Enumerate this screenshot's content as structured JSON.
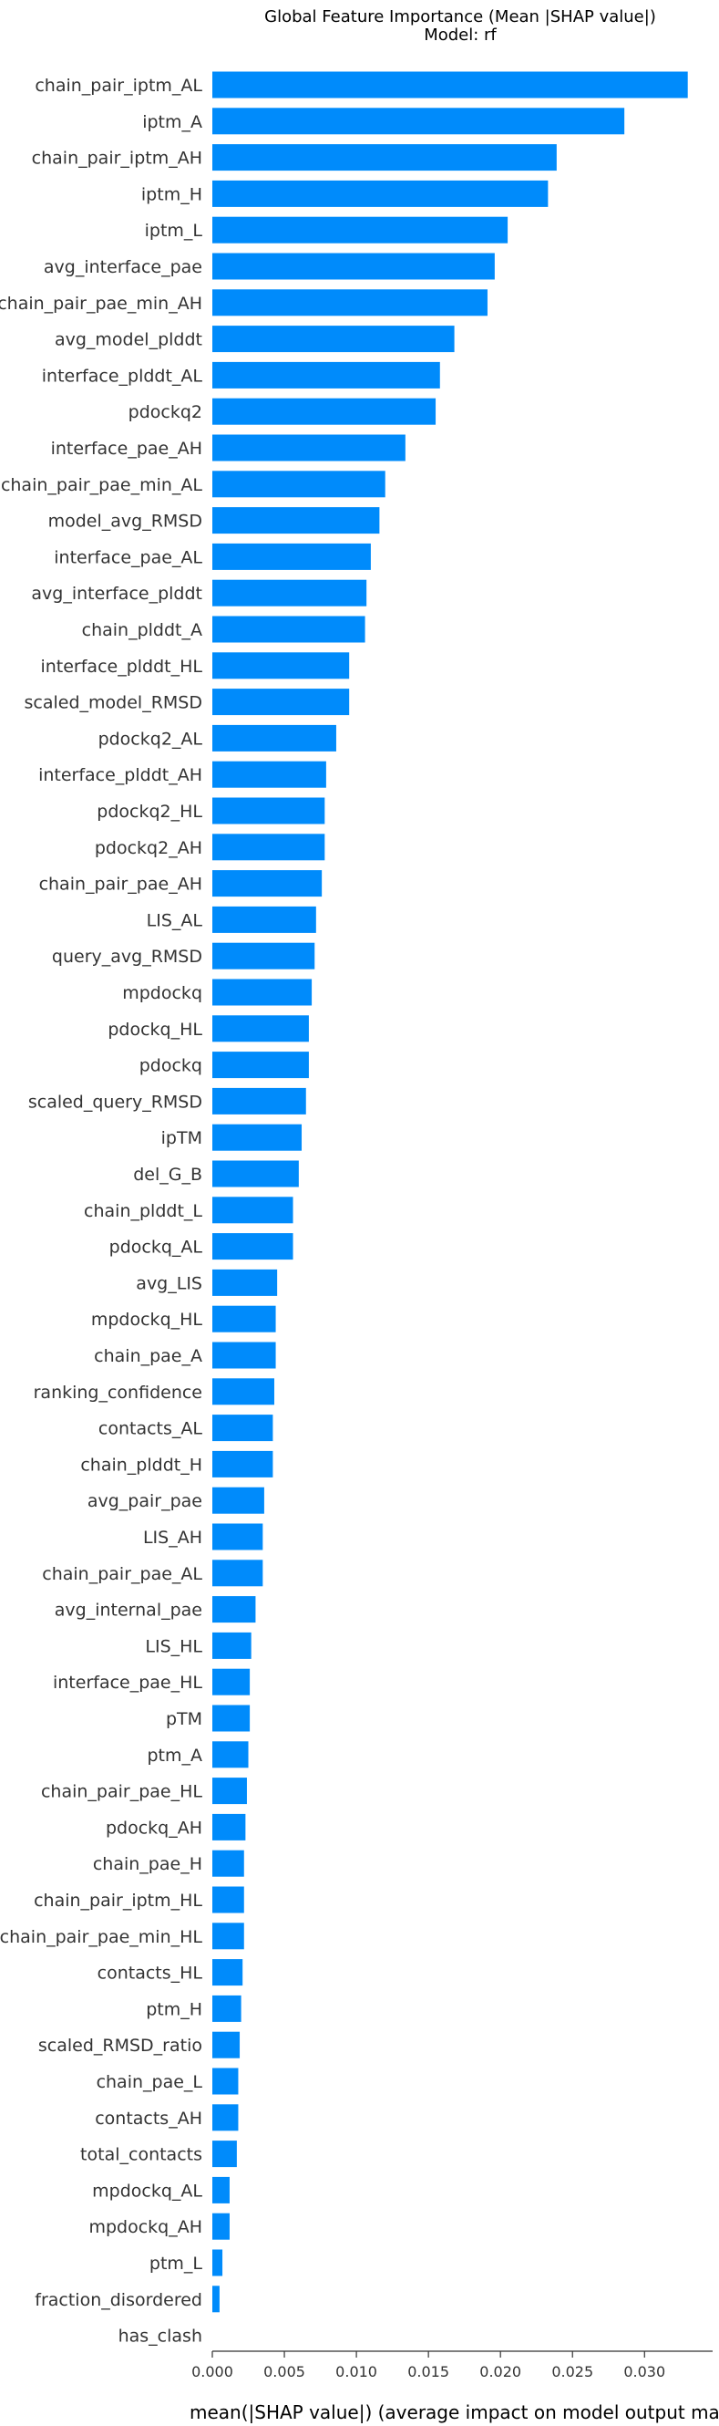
{
  "chart_data": {
    "type": "bar",
    "orientation": "horizontal",
    "title": "Global Feature Importance (Mean |SHAP value|)",
    "subtitle": "Model: rf",
    "xlabel": "mean(|SHAP value|) (average impact on model output magnitud",
    "xlim": [
      0,
      0.0346
    ],
    "xticks": [
      "0.000",
      "0.005",
      "0.010",
      "0.015",
      "0.020",
      "0.025",
      "0.030"
    ],
    "bar_color": "#008bfb",
    "grid": false,
    "categories": [
      "chain_pair_iptm_AL",
      "iptm_A",
      "chain_pair_iptm_AH",
      "iptm_H",
      "iptm_L",
      "avg_interface_pae",
      "chain_pair_pae_min_AH",
      "avg_model_plddt",
      "interface_plddt_AL",
      "pdockq2",
      "interface_pae_AH",
      "chain_pair_pae_min_AL",
      "model_avg_RMSD",
      "interface_pae_AL",
      "avg_interface_plddt",
      "chain_plddt_A",
      "interface_plddt_HL",
      "scaled_model_RMSD",
      "pdockq2_AL",
      "interface_plddt_AH",
      "pdockq2_HL",
      "pdockq2_AH",
      "chain_pair_pae_AH",
      "LIS_AL",
      "query_avg_RMSD",
      "mpdockq",
      "pdockq_HL",
      "pdockq",
      "scaled_query_RMSD",
      "ipTM",
      "del_G_B",
      "chain_plddt_L",
      "pdockq_AL",
      "avg_LIS",
      "mpdockq_HL",
      "chain_pae_A",
      "ranking_confidence",
      "contacts_AL",
      "chain_plddt_H",
      "avg_pair_pae",
      "LIS_AH",
      "chain_pair_pae_AL",
      "avg_internal_pae",
      "LIS_HL",
      "interface_pae_HL",
      "pTM",
      "ptm_A",
      "chain_pair_pae_HL",
      "pdockq_AH",
      "chain_pae_H",
      "chain_pair_iptm_HL",
      "chain_pair_pae_min_HL",
      "contacts_HL",
      "ptm_H",
      "scaled_RMSD_ratio",
      "chain_pae_L",
      "contacts_AH",
      "total_contacts",
      "mpdockq_AL",
      "mpdockq_AH",
      "ptm_L",
      "fraction_disordered",
      "has_clash"
    ],
    "values": [
      0.033,
      0.0286,
      0.0239,
      0.0233,
      0.0205,
      0.0196,
      0.0191,
      0.0168,
      0.0158,
      0.0155,
      0.0134,
      0.012,
      0.0116,
      0.011,
      0.0107,
      0.0106,
      0.0095,
      0.0095,
      0.0086,
      0.0079,
      0.0078,
      0.0078,
      0.0076,
      0.0072,
      0.0071,
      0.0069,
      0.0067,
      0.0067,
      0.0065,
      0.0062,
      0.006,
      0.0056,
      0.0056,
      0.0045,
      0.0044,
      0.0044,
      0.0043,
      0.0042,
      0.0042,
      0.0036,
      0.0035,
      0.0035,
      0.003,
      0.0027,
      0.0026,
      0.0026,
      0.0025,
      0.0024,
      0.0023,
      0.0022,
      0.0022,
      0.0022,
      0.0021,
      0.002,
      0.0019,
      0.0018,
      0.0018,
      0.0017,
      0.0012,
      0.0012,
      0.0007,
      0.0005,
      0.0
    ]
  }
}
